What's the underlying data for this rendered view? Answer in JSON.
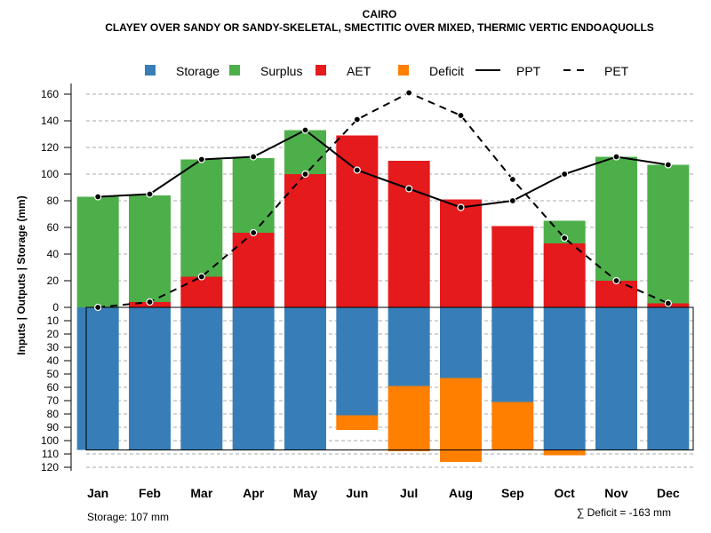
{
  "chart_data": {
    "type": "bar",
    "title": "CAIRO",
    "subtitle": "CLAYEY OVER SANDY OR SANDY-SKELETAL, SMECTITIC OVER MIXED, THERMIC VERTIC ENDOAQUOLLS",
    "ylabel": "Inputs | Outputs | Storage    (mm)",
    "categories": [
      "Jan",
      "Feb",
      "Mar",
      "Apr",
      "May",
      "Jun",
      "Jul",
      "Aug",
      "Sep",
      "Oct",
      "Nov",
      "Dec"
    ],
    "upper_ylim": [
      0,
      160
    ],
    "upper_ticks": [
      0,
      20,
      40,
      60,
      80,
      100,
      120,
      140,
      160
    ],
    "lower_ylim": [
      0,
      120
    ],
    "lower_ticks": [
      0,
      10,
      20,
      30,
      40,
      50,
      60,
      70,
      80,
      90,
      100,
      110,
      120
    ],
    "storage_capacity": 107,
    "series": [
      {
        "name": "AET",
        "values": [
          0,
          4,
          23,
          56,
          100,
          129,
          110,
          81,
          61,
          48,
          20,
          3
        ]
      },
      {
        "name": "Surplus",
        "values": [
          83,
          80,
          88,
          56,
          33,
          0,
          0,
          0,
          0,
          17,
          93,
          104
        ]
      },
      {
        "name": "Storage",
        "values": [
          107,
          107,
          107,
          107,
          107,
          81,
          59,
          53,
          71,
          107,
          107,
          107
        ]
      },
      {
        "name": "Deficit",
        "values": [
          0,
          0,
          0,
          0,
          0,
          11,
          49,
          63,
          36,
          4,
          0,
          0
        ]
      },
      {
        "name": "PPT",
        "values": [
          83,
          85,
          111,
          113,
          133,
          103,
          89,
          75,
          80,
          100,
          113,
          107
        ]
      },
      {
        "name": "PET",
        "values": [
          0,
          4,
          23,
          56,
          100,
          141,
          161,
          144,
          96,
          52,
          20,
          3
        ]
      }
    ],
    "legend": [
      {
        "name": "Storage",
        "kind": "box",
        "color": "#377EB8"
      },
      {
        "name": "Surplus",
        "kind": "box",
        "color": "#4DAF4A"
      },
      {
        "name": "AET",
        "kind": "box",
        "color": "#E41A1C"
      },
      {
        "name": "Deficit",
        "kind": "box",
        "color": "#FF7F00"
      },
      {
        "name": "PPT",
        "kind": "solid",
        "color": "#000000"
      },
      {
        "name": "PET",
        "kind": "dashed",
        "color": "#000000"
      }
    ],
    "legend_position": "top",
    "grid": true,
    "footer_left": "Storage: 107 mm",
    "footer_right": "∑ Deficit = -163 mm"
  }
}
